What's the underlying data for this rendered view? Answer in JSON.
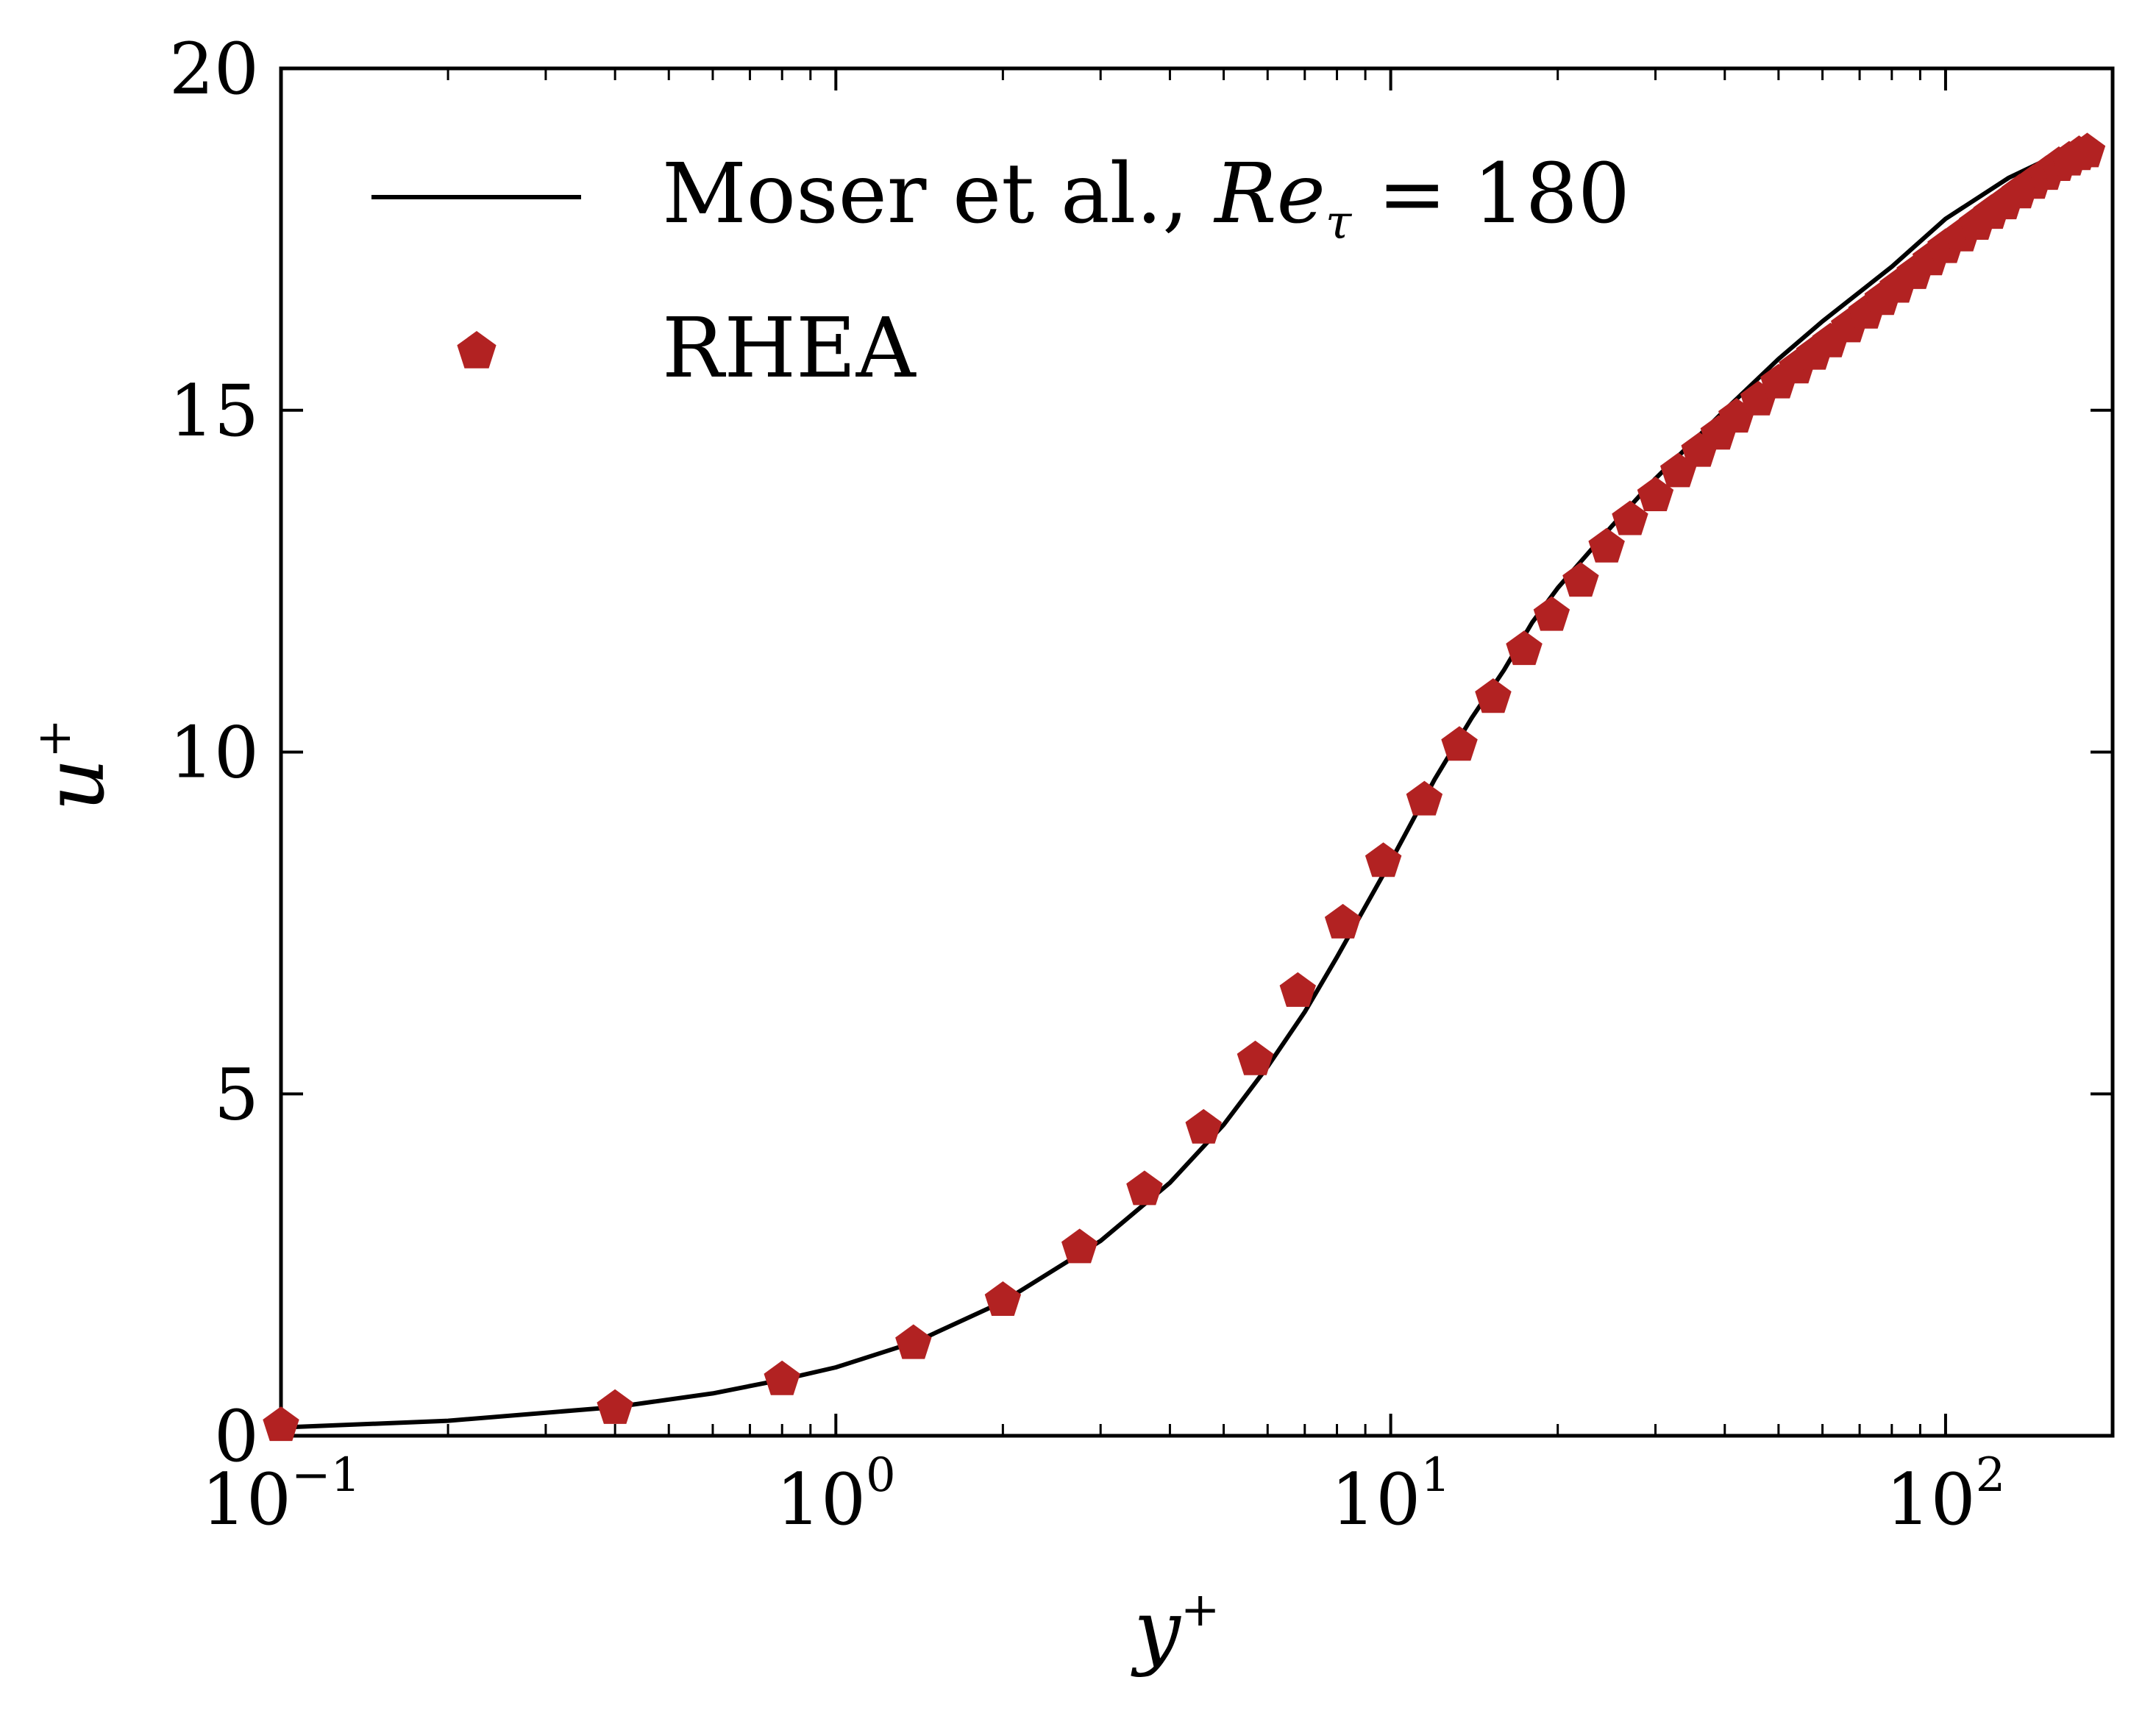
{
  "chart_data": {
    "type": "line",
    "xscale": "log",
    "xlim": [
      0.1,
      200
    ],
    "ylim": [
      0,
      20
    ],
    "xlabel": "y",
    "xlabel_sup": "+",
    "ylabel": "u",
    "ylabel_sup": "+",
    "grid": false,
    "legend_position": "top-left",
    "x_ticks": [
      {
        "value": 0.1,
        "base": "10",
        "exp": "−1"
      },
      {
        "value": 1,
        "base": "10",
        "exp": "0"
      },
      {
        "value": 10,
        "base": "10",
        "exp": "1"
      },
      {
        "value": 100,
        "base": "10",
        "exp": "2"
      }
    ],
    "y_ticks": [
      {
        "value": 0,
        "label": "0"
      },
      {
        "value": 5,
        "label": "5"
      },
      {
        "value": 10,
        "label": "10"
      },
      {
        "value": 15,
        "label": "15"
      },
      {
        "value": 20,
        "label": "20"
      }
    ],
    "series": [
      {
        "name": "Moser et al., Re_τ = 180",
        "legend_prefix": "Moser et al., ",
        "legend_math": "Re",
        "legend_sub": "τ",
        "legend_suffix": " = 180",
        "kind": "line",
        "color": "#000000",
        "x": [
          0.1,
          0.2,
          0.4,
          0.6,
          0.8,
          1.0,
          1.4,
          2.0,
          3.0,
          4.0,
          5.0,
          6.0,
          7.0,
          8.0,
          10.0,
          12.0,
          14.0,
          16.0,
          18.0,
          20.0,
          25.0,
          30.0,
          40.0,
          50.0,
          60.0,
          80.0,
          100.0,
          130.0,
          160.0,
          180.0
        ],
        "y": [
          0.12,
          0.22,
          0.42,
          0.62,
          0.82,
          1.0,
          1.38,
          1.96,
          2.85,
          3.7,
          4.55,
          5.4,
          6.2,
          7.0,
          8.4,
          9.6,
          10.5,
          11.2,
          11.9,
          12.4,
          13.3,
          14.0,
          15.0,
          15.75,
          16.3,
          17.1,
          17.8,
          18.4,
          18.75,
          18.8
        ]
      },
      {
        "name": "RHEA",
        "kind": "markers",
        "marker": "pentagon",
        "color": "#b22222",
        "x": [
          0.1,
          0.4,
          0.8,
          1.38,
          2.0,
          2.75,
          3.6,
          4.6,
          5.7,
          6.8,
          8.2,
          9.7,
          11.5,
          13.3,
          15.3,
          17.4,
          19.5,
          22.0,
          24.5,
          27.0,
          30.0,
          33.0,
          36.0,
          39.0,
          42.0,
          46.0,
          50.0,
          54.0,
          58.0,
          62.0,
          67.0,
          72.0,
          77.0,
          82.0,
          88.0,
          94.0,
          100.0,
          107.0,
          114.0,
          121.0,
          128.0,
          136.0,
          144.0,
          152.0,
          160.0,
          167.0,
          174.0,
          180.0
        ],
        "y": [
          0.15,
          0.4,
          0.82,
          1.35,
          1.98,
          2.75,
          3.6,
          4.5,
          5.5,
          6.5,
          7.5,
          8.4,
          9.3,
          10.1,
          10.8,
          11.5,
          12.0,
          12.5,
          13.0,
          13.4,
          13.75,
          14.1,
          14.4,
          14.65,
          14.9,
          15.15,
          15.4,
          15.62,
          15.82,
          16.0,
          16.22,
          16.42,
          16.62,
          16.8,
          17.0,
          17.2,
          17.38,
          17.55,
          17.72,
          17.88,
          18.02,
          18.18,
          18.32,
          18.45,
          18.58,
          18.66,
          18.74,
          18.78
        ]
      }
    ]
  }
}
